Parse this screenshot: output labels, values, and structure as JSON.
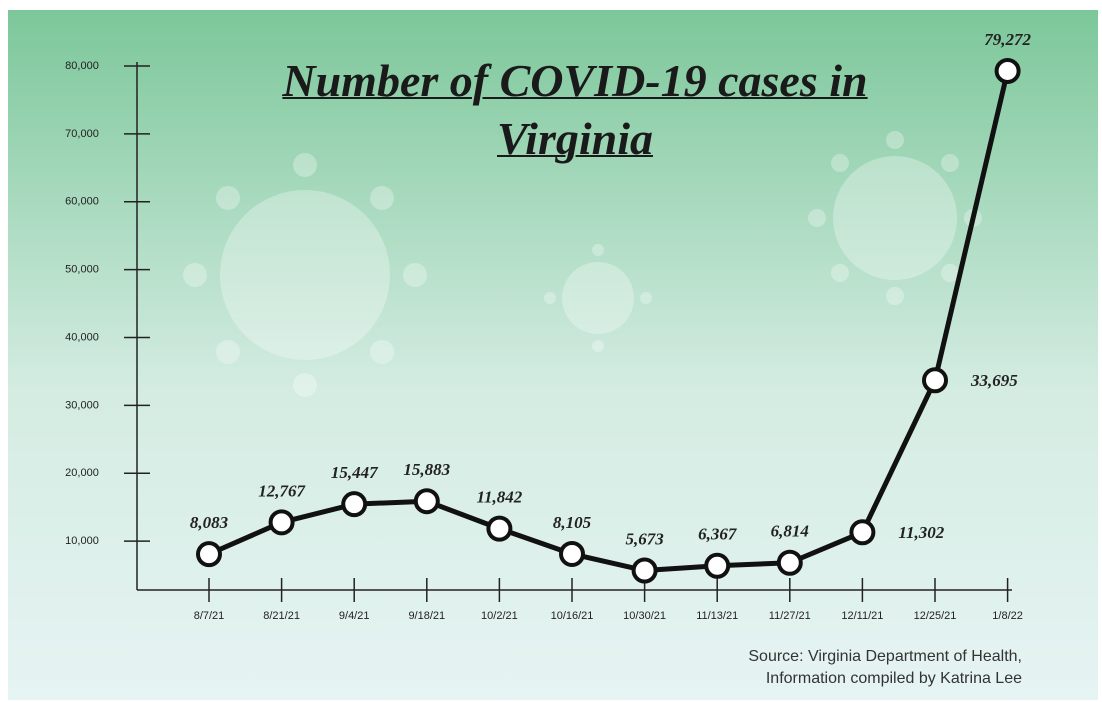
{
  "chart_data": {
    "type": "line",
    "title": "Number of COVID-19 cases in Virginia",
    "source": [
      "Source: Virginia Department of Health,",
      "Information compiled by Katrina Lee"
    ],
    "categories": [
      "8/7/21",
      "8/21/21",
      "9/4/21",
      "9/18/21",
      "10/2/21",
      "10/16/21",
      "10/30/21",
      "11/13/21",
      "11/27/21",
      "12/11/21",
      "12/25/21",
      "1/8/22"
    ],
    "values": [
      8083,
      12767,
      15447,
      15883,
      11842,
      8105,
      5673,
      6367,
      6814,
      11302,
      33695,
      79272
    ],
    "value_labels": [
      "8,083",
      "12,767",
      "15,447",
      "15,883",
      "11,842",
      "8,105",
      "5,673",
      "6,367",
      "6,814",
      "11,302",
      "33,695",
      "79,272"
    ],
    "color": "#111111",
    "ylim": [
      2800,
      80000
    ],
    "yticks": [
      {
        "value": 10000,
        "label": "10,000"
      },
      {
        "value": 20000,
        "label": "20,000"
      },
      {
        "value": 30000,
        "label": "30,000"
      },
      {
        "value": 40000,
        "label": "40,000"
      },
      {
        "value": 50000,
        "label": "50,000"
      },
      {
        "value": 60000,
        "label": "60,000"
      },
      {
        "value": 70000,
        "label": "70,000"
      },
      {
        "value": 80000,
        "label": "80,000"
      }
    ],
    "grid": false
  }
}
